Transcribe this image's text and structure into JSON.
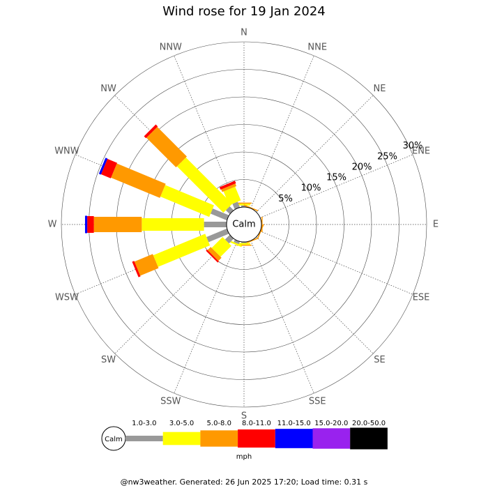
{
  "chart_data": {
    "type": "wind-rose",
    "title": "Wind rose for 19 Jan 2024",
    "categories": [
      "N",
      "NNE",
      "NE",
      "ENE",
      "E",
      "ESE",
      "SE",
      "SSE",
      "S",
      "SSW",
      "SW",
      "WSW",
      "W",
      "WNW",
      "NW",
      "NNW"
    ],
    "calm_label": "Calm",
    "rlim": [
      0,
      30
    ],
    "rticks": [
      {
        "value": 5,
        "label": "5%"
      },
      {
        "value": 10,
        "label": "10%"
      },
      {
        "value": 15,
        "label": "15%"
      },
      {
        "value": 20,
        "label": "20%"
      },
      {
        "value": 25,
        "label": "25%"
      },
      {
        "value": 30,
        "label": "30%"
      }
    ],
    "legend_title": "mph",
    "series": [
      {
        "name": "1.0-3.0",
        "color": "#999999",
        "values": [
          0.3,
          0,
          0,
          0,
          0,
          0,
          0,
          0,
          0.2,
          0.5,
          1.2,
          4.0,
          4.1,
          3.2,
          1.0,
          1.1
        ]
      },
      {
        "name": "3.0-5.0",
        "color": "#ffff00",
        "values": [
          0.3,
          0,
          0,
          0,
          0,
          0,
          0,
          0,
          0.3,
          0.3,
          2.8,
          10.2,
          11.3,
          9.6,
          11.9,
          2.7
        ]
      },
      {
        "name": "5.0-8.0",
        "color": "#ff9900",
        "values": [
          0.2,
          0.2,
          0,
          0,
          0.2,
          0.2,
          0,
          0.2,
          0.2,
          0,
          0.8,
          3.6,
          8.7,
          9.6,
          7.6,
          0.5
        ]
      },
      {
        "name": "8.0-11.0",
        "color": "#ff0000",
        "values": [
          0,
          0,
          0,
          0,
          0,
          0,
          0,
          0,
          0,
          0,
          0.3,
          0.4,
          1.2,
          1.9,
          0.5,
          0.5
        ]
      },
      {
        "name": "11.0-15.0",
        "color": "#0000ff",
        "values": [
          0,
          0,
          0,
          0,
          0,
          0,
          0,
          0,
          0,
          0,
          0,
          0,
          0.4,
          0.4,
          0,
          0
        ]
      },
      {
        "name": "15.0-20.0",
        "color": "#9922ee",
        "values": [
          0,
          0,
          0,
          0,
          0,
          0,
          0,
          0,
          0,
          0,
          0,
          0,
          0,
          0,
          0,
          0
        ]
      },
      {
        "name": "20.0-50.0",
        "color": "#000000",
        "values": [
          0,
          0,
          0,
          0,
          0,
          0,
          0,
          0,
          0,
          0,
          0,
          0,
          0,
          0,
          0,
          0
        ]
      }
    ],
    "footer": "@nw3weather. Generated: 26 Jun 2025 17:20; Load time: 0.31 s"
  }
}
